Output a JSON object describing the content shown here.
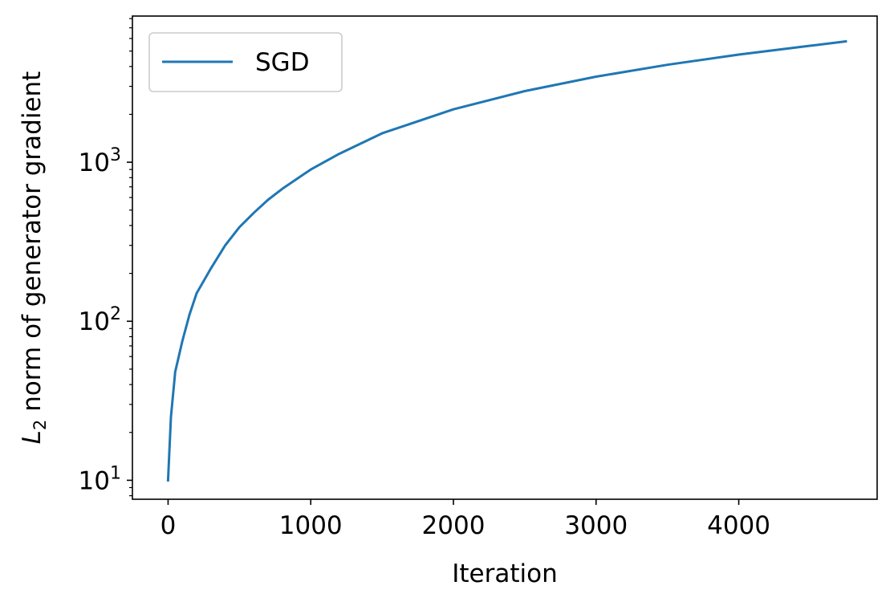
{
  "chart_data": {
    "type": "line",
    "title": "",
    "xlabel": "Iteration",
    "ylabel": {
      "main": "L",
      "subscript": "2",
      "rest": " norm of generator gradient"
    },
    "yscale": "log",
    "xlim": [
      -250,
      4970
    ],
    "ylim": [
      7.6,
      8300
    ],
    "x_ticks": [
      0,
      1000,
      2000,
      3000,
      4000
    ],
    "x_tick_labels": [
      "0",
      "1000",
      "2000",
      "3000",
      "4000"
    ],
    "y_ticks": [
      10,
      100,
      1000
    ],
    "y_tick_labels": [
      {
        "base": "10",
        "exp": "1"
      },
      {
        "base": "10",
        "exp": "2"
      },
      {
        "base": "10",
        "exp": "3"
      }
    ],
    "grid": false,
    "legend": {
      "position": "top-left"
    },
    "series": [
      {
        "name": "SGD",
        "color": "#1f77b4",
        "x": [
          0,
          20,
          50,
          100,
          150,
          200,
          300,
          400,
          500,
          600,
          700,
          800,
          1000,
          1200,
          1500,
          2000,
          2500,
          3000,
          3500,
          4000,
          4500,
          4750
        ],
        "y": [
          10,
          25,
          48,
          75,
          110,
          150,
          215,
          300,
          390,
          480,
          580,
          680,
          900,
          1130,
          1520,
          2150,
          2800,
          3450,
          4100,
          4750,
          5400,
          5750
        ]
      }
    ]
  }
}
